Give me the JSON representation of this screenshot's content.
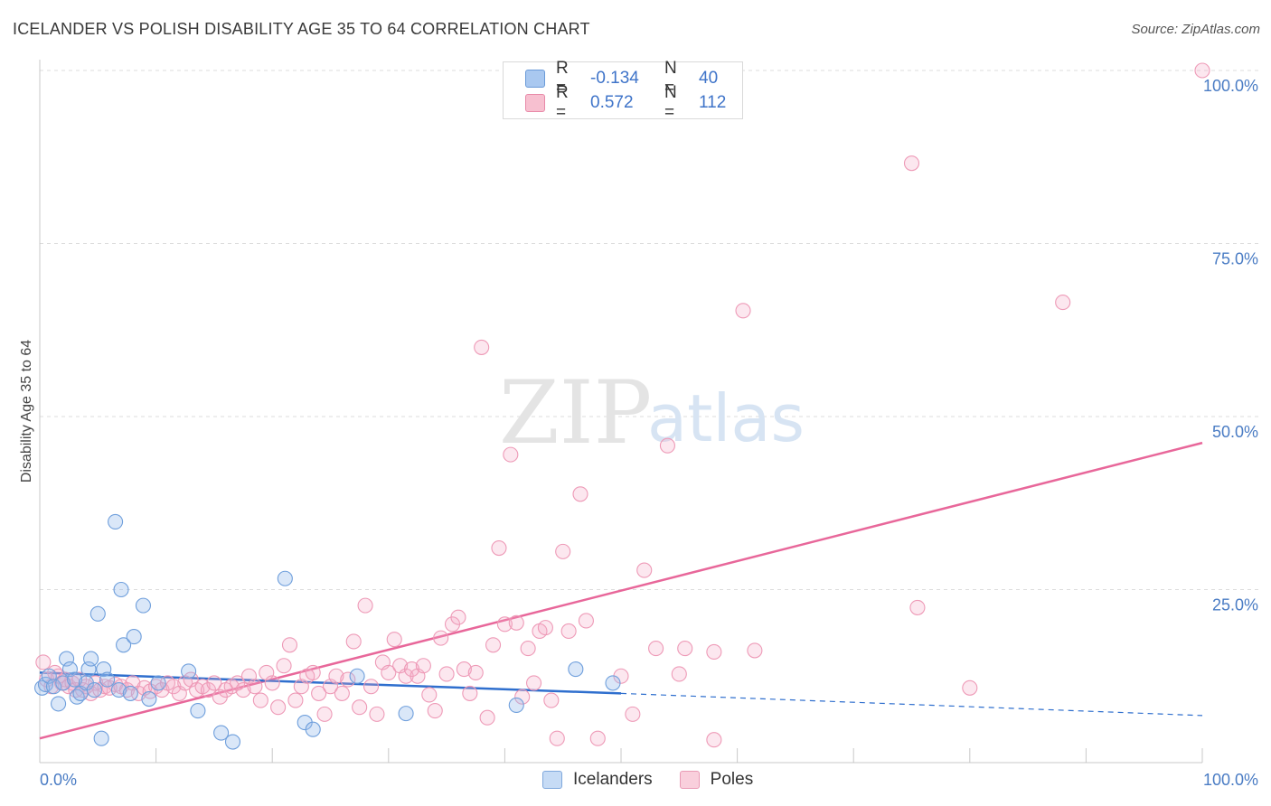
{
  "header": {
    "title": "ICELANDER VS POLISH DISABILITY AGE 35 TO 64 CORRELATION CHART",
    "source": "Source: ZipAtlas.com"
  },
  "watermark": {
    "zip": "ZIP",
    "atlas": "atlas"
  },
  "legend": {
    "rows": [
      {
        "r_label": "R =",
        "r_value": "-0.134",
        "n_label": "N =",
        "n_value": "40",
        "color": "#a9c8f0",
        "border": "#6a9ad8"
      },
      {
        "r_label": "R =",
        "r_value": "0.572",
        "n_label": "N =",
        "n_value": "112",
        "color": "#f7c0d0",
        "border": "#e889a8"
      }
    ]
  },
  "bottom_legend": {
    "icelanders": "Icelanders",
    "poles": "Poles"
  },
  "chart_data": {
    "type": "scatter",
    "title": "ICELANDER VS POLISH DISABILITY AGE 35 TO 64 CORRELATION CHART",
    "xlabel": "",
    "ylabel": "Disability Age 35 to 64",
    "xlim": [
      0,
      100
    ],
    "ylim": [
      0,
      100
    ],
    "x_tick_labels": [
      "0.0%",
      "100.0%"
    ],
    "y_tick_labels": [
      "25.0%",
      "50.0%",
      "75.0%",
      "100.0%"
    ],
    "y_ticks": [
      25,
      50,
      75,
      100
    ],
    "grid": true,
    "legend_position": "top-center",
    "colors": {
      "icelanders": "#6fa0e0",
      "poles": "#f08aaa",
      "icelanders_line": "#2f6fce",
      "poles_line": "#e8679a"
    },
    "series": [
      {
        "name": "Icelanders",
        "r": -0.134,
        "n": 40,
        "trend": {
          "x0": 0,
          "y0": 13.0,
          "x1": 50,
          "y1": 10.0,
          "dashed_to_x": 100,
          "dashed_to_y": 6.8
        },
        "points": [
          [
            0.2,
            10.8
          ],
          [
            0.5,
            11.3
          ],
          [
            0.8,
            12.5
          ],
          [
            1.2,
            11.0
          ],
          [
            1.6,
            8.5
          ],
          [
            2.0,
            11.5
          ],
          [
            2.3,
            15.0
          ],
          [
            2.6,
            13.5
          ],
          [
            3.0,
            12.0
          ],
          [
            3.2,
            9.5
          ],
          [
            3.5,
            10.0
          ],
          [
            4.0,
            11.5
          ],
          [
            4.2,
            13.5
          ],
          [
            4.4,
            15.0
          ],
          [
            4.7,
            10.5
          ],
          [
            5.0,
            21.5
          ],
          [
            5.3,
            3.5
          ],
          [
            5.5,
            13.5
          ],
          [
            5.8,
            12.0
          ],
          [
            6.5,
            34.8
          ],
          [
            6.8,
            10.5
          ],
          [
            7.0,
            25.0
          ],
          [
            7.2,
            17.0
          ],
          [
            7.8,
            10.0
          ],
          [
            8.1,
            18.2
          ],
          [
            8.9,
            22.7
          ],
          [
            9.4,
            9.2
          ],
          [
            10.2,
            11.5
          ],
          [
            12.8,
            13.2
          ],
          [
            13.6,
            7.5
          ],
          [
            15.6,
            4.3
          ],
          [
            16.6,
            3.0
          ],
          [
            21.1,
            26.6
          ],
          [
            22.8,
            5.8
          ],
          [
            23.5,
            4.8
          ],
          [
            27.3,
            12.5
          ],
          [
            31.5,
            7.1
          ],
          [
            41.0,
            8.3
          ],
          [
            46.1,
            13.5
          ],
          [
            49.3,
            11.5
          ]
        ]
      },
      {
        "name": "Poles",
        "r": 0.572,
        "n": 112,
        "trend": {
          "x0": 0,
          "y0": 3.5,
          "x1": 100,
          "y1": 46.2
        },
        "points": [
          [
            0.3,
            14.5
          ],
          [
            0.6,
            12.0
          ],
          [
            1.0,
            11.0
          ],
          [
            1.3,
            13.0
          ],
          [
            1.6,
            12.5
          ],
          [
            1.9,
            11.5
          ],
          [
            2.2,
            12.0
          ],
          [
            2.5,
            11.0
          ],
          [
            2.8,
            11.5
          ],
          [
            3.1,
            10.5
          ],
          [
            3.4,
            12.0
          ],
          [
            3.7,
            10.5
          ],
          [
            4.0,
            11.0
          ],
          [
            4.4,
            10.0
          ],
          [
            4.8,
            11.5
          ],
          [
            5.2,
            10.5
          ],
          [
            5.6,
            11.0
          ],
          [
            6.0,
            10.8
          ],
          [
            6.5,
            11.3
          ],
          [
            7.0,
            11.0
          ],
          [
            7.5,
            10.5
          ],
          [
            8.0,
            11.5
          ],
          [
            8.5,
            10.0
          ],
          [
            9.0,
            10.8
          ],
          [
            9.5,
            10.3
          ],
          [
            10.0,
            11.0
          ],
          [
            10.5,
            10.5
          ],
          [
            11.0,
            11.5
          ],
          [
            11.5,
            11.0
          ],
          [
            12.0,
            10.0
          ],
          [
            12.5,
            11.5
          ],
          [
            13.0,
            12.0
          ],
          [
            13.5,
            10.5
          ],
          [
            14.0,
            11.0
          ],
          [
            14.5,
            10.5
          ],
          [
            15.0,
            11.5
          ],
          [
            15.5,
            9.5
          ],
          [
            16.0,
            10.5
          ],
          [
            16.5,
            11.0
          ],
          [
            17.0,
            11.5
          ],
          [
            17.5,
            10.5
          ],
          [
            18.0,
            12.5
          ],
          [
            18.5,
            11.0
          ],
          [
            19.0,
            9.0
          ],
          [
            19.5,
            13.0
          ],
          [
            20.0,
            11.5
          ],
          [
            20.5,
            8.0
          ],
          [
            21.0,
            14.0
          ],
          [
            21.5,
            17.0
          ],
          [
            22.0,
            9.0
          ],
          [
            22.5,
            11.0
          ],
          [
            23.0,
            12.5
          ],
          [
            23.5,
            13.0
          ],
          [
            24.0,
            10.0
          ],
          [
            24.5,
            7.0
          ],
          [
            25.0,
            11.0
          ],
          [
            25.5,
            12.5
          ],
          [
            26.0,
            10.0
          ],
          [
            26.5,
            12.0
          ],
          [
            27.0,
            17.5
          ],
          [
            27.5,
            8.0
          ],
          [
            28.0,
            22.7
          ],
          [
            28.5,
            11.0
          ],
          [
            29.0,
            7.0
          ],
          [
            29.5,
            14.5
          ],
          [
            30.0,
            13.0
          ],
          [
            30.5,
            17.8
          ],
          [
            31.0,
            14.0
          ],
          [
            31.5,
            12.5
          ],
          [
            32.0,
            13.5
          ],
          [
            32.5,
            12.5
          ],
          [
            33.0,
            14.0
          ],
          [
            33.5,
            9.8
          ],
          [
            34.0,
            7.5
          ],
          [
            34.5,
            18.0
          ],
          [
            35.0,
            12.8
          ],
          [
            35.5,
            20.0
          ],
          [
            36.0,
            21.0
          ],
          [
            36.5,
            13.5
          ],
          [
            37.0,
            10.0
          ],
          [
            37.5,
            13.0
          ],
          [
            38.0,
            60.0
          ],
          [
            38.5,
            6.5
          ],
          [
            39.0,
            17.0
          ],
          [
            39.5,
            31.0
          ],
          [
            40.0,
            20.0
          ],
          [
            40.5,
            44.5
          ],
          [
            41.0,
            20.2
          ],
          [
            41.5,
            9.5
          ],
          [
            42.0,
            16.5
          ],
          [
            42.5,
            11.5
          ],
          [
            43.0,
            19.0
          ],
          [
            43.5,
            19.5
          ],
          [
            44.0,
            9.0
          ],
          [
            44.5,
            3.5
          ],
          [
            45.0,
            30.5
          ],
          [
            45.5,
            19.0
          ],
          [
            46.5,
            38.8
          ],
          [
            47.0,
            20.5
          ],
          [
            48.0,
            3.5
          ],
          [
            52.0,
            27.8
          ],
          [
            50.0,
            12.5
          ],
          [
            51.0,
            7.0
          ],
          [
            53.0,
            16.5
          ],
          [
            54.0,
            45.8
          ],
          [
            55.0,
            12.8
          ],
          [
            55.5,
            16.5
          ],
          [
            58.0,
            16.0
          ],
          [
            58.0,
            3.3
          ],
          [
            60.5,
            65.3
          ],
          [
            61.5,
            16.2
          ],
          [
            75.0,
            86.6
          ],
          [
            75.5,
            22.4
          ],
          [
            80.0,
            10.8
          ],
          [
            88.0,
            66.5
          ],
          [
            100.0,
            100.0
          ]
        ]
      }
    ]
  }
}
